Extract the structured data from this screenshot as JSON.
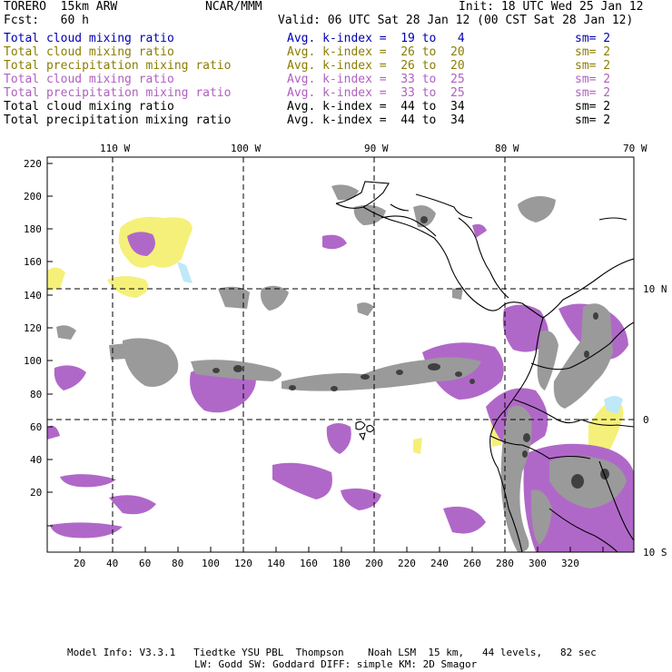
{
  "header": {
    "model": "TORERO  15km ARW",
    "center": "NCAR/MMM",
    "init": "Init: 18 UTC Wed 25 Jan 12",
    "fcst": "Fcst:   60 h",
    "valid": "Valid: 06 UTC Sat 28 Jan 12 (00 CST Sat 28 Jan 12)"
  },
  "fields": [
    {
      "name": "Total cloud mixing ratio",
      "kindex": "Avg. k-index =  19 to   4",
      "sm": "sm= 2",
      "color": "#0000b4"
    },
    {
      "name": "Total cloud mixing ratio",
      "kindex": "Avg. k-index =  26 to  20",
      "sm": "sm= 2",
      "color": "#8b7d00"
    },
    {
      "name": "Total precipitation mixing ratio",
      "kindex": "Avg. k-index =  26 to  20",
      "sm": "sm= 2",
      "color": "#8b7d00"
    },
    {
      "name": "Total cloud mixing ratio",
      "kindex": "Avg. k-index =  33 to  25",
      "sm": "sm= 2",
      "color": "#b060c0"
    },
    {
      "name": "Total precipitation mixing ratio",
      "kindex": "Avg. k-index =  33 to  25",
      "sm": "sm= 2",
      "color": "#b060c0"
    },
    {
      "name": "Total cloud mixing ratio",
      "kindex": "Avg. k-index =  44 to  34",
      "sm": "sm= 2",
      "color": "#000000"
    },
    {
      "name": "Total precipitation mixing ratio",
      "kindex": "Avg. k-index =  44 to  34",
      "sm": "sm= 2",
      "color": "#000000"
    }
  ],
  "axes": {
    "top_lon": [
      "110 W",
      "100 W",
      "90 W",
      "80 W",
      "70 W"
    ],
    "right_lat": [
      "10 N",
      "0",
      "10 S"
    ],
    "left_ticks": [
      "220",
      "200",
      "180",
      "160",
      "140",
      "120",
      "100",
      "80",
      "60",
      "40",
      "20"
    ],
    "bottom_ticks": [
      "20",
      "40",
      "60",
      "80",
      "100",
      "120",
      "140",
      "160",
      "180",
      "200",
      "220",
      "240",
      "260",
      "280",
      "300",
      "320"
    ]
  },
  "footer": {
    "line1": "Model Info: V3.3.1   Tiedtke YSU PBL  Thompson    Noah LSM  15 km,   44 levels,   82 sec",
    "line2": "LW: Godd SW: Goddard DIFF: simple KM: 2D Smagor"
  },
  "colors": {
    "yellow": "#f5f07a",
    "purple": "#b068c8",
    "gray": "#9a9a9a",
    "dark": "#404040",
    "cyan": "#bfe8f8"
  }
}
